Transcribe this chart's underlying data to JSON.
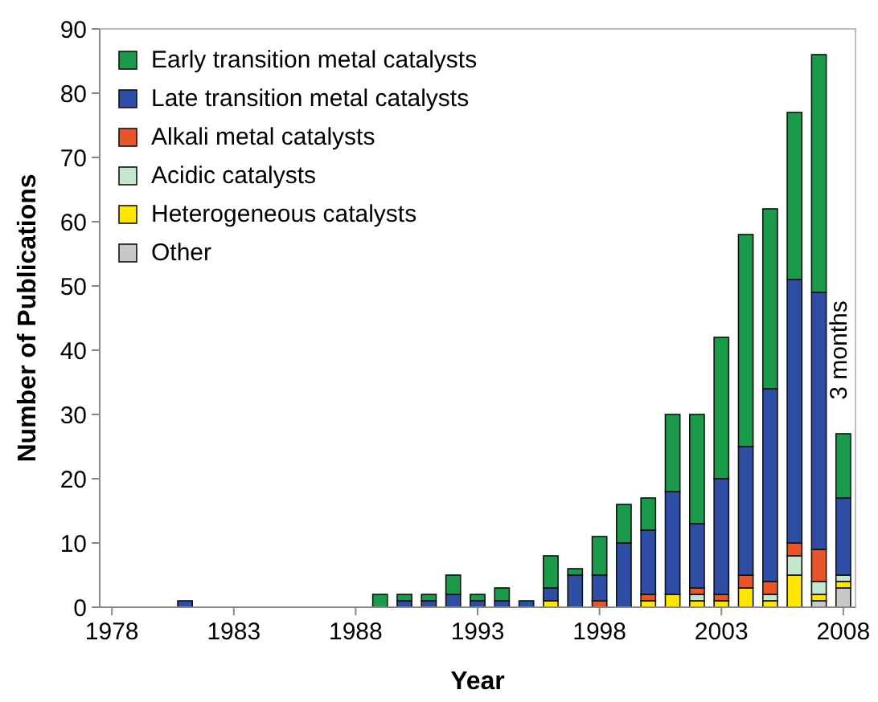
{
  "chart_data": {
    "type": "bar",
    "stacked": true,
    "xlabel": "Year",
    "ylabel": "Number of Publications",
    "categories": [
      "1978",
      null,
      null,
      null,
      null,
      "1983",
      null,
      null,
      null,
      null,
      "1988",
      null,
      null,
      null,
      null,
      "1993",
      null,
      null,
      null,
      null,
      "1998",
      null,
      null,
      null,
      null,
      "2003",
      null,
      null,
      null,
      null,
      "2008"
    ],
    "series": [
      {
        "name": "Other",
        "color": "#c8c8c8",
        "values": [
          0,
          0,
          0,
          0,
          0,
          0,
          0,
          0,
          0,
          0,
          0,
          0,
          0,
          0,
          0,
          0,
          0,
          0,
          0,
          0,
          0,
          0,
          0,
          0,
          0,
          0,
          0,
          0,
          0,
          1,
          3
        ]
      },
      {
        "name": "Heterogeneous catalysts",
        "color": "#ffe600",
        "values": [
          0,
          0,
          0,
          0,
          0,
          0,
          0,
          0,
          0,
          0,
          0,
          0,
          0,
          0,
          0,
          0,
          0,
          0,
          1,
          0,
          0,
          0,
          1,
          2,
          1,
          1,
          3,
          1,
          5,
          1,
          1
        ]
      },
      {
        "name": "Acidic catalysts",
        "color": "#c5e6cf",
        "values": [
          0,
          0,
          0,
          0,
          0,
          0,
          0,
          0,
          0,
          0,
          0,
          0,
          0,
          0,
          0,
          0,
          0,
          0,
          0,
          0,
          0,
          0,
          0,
          0,
          1,
          0,
          0,
          1,
          3,
          2,
          1
        ]
      },
      {
        "name": "Alkali metal catalysts",
        "color": "#e8552a",
        "values": [
          0,
          0,
          0,
          0,
          0,
          0,
          0,
          0,
          0,
          0,
          0,
          0,
          0,
          0,
          0,
          0,
          0,
          0,
          0,
          0,
          1,
          0,
          1,
          0,
          1,
          1,
          2,
          2,
          2,
          5,
          0
        ]
      },
      {
        "name": "Late transition metal catalysts",
        "color": "#2e4ea6",
        "values": [
          0,
          0,
          0,
          1,
          0,
          0,
          0,
          0,
          0,
          0,
          0,
          0,
          1,
          1,
          2,
          1,
          1,
          1,
          2,
          5,
          4,
          10,
          10,
          16,
          10,
          18,
          20,
          30,
          41,
          40,
          12
        ]
      },
      {
        "name": "Early transition metal catalysts",
        "color": "#1a9a4a",
        "values": [
          0,
          0,
          0,
          0,
          0,
          0,
          0,
          0,
          0,
          0,
          0,
          2,
          1,
          1,
          3,
          1,
          2,
          0,
          5,
          1,
          6,
          6,
          5,
          12,
          17,
          22,
          33,
          28,
          26,
          37,
          10
        ]
      }
    ],
    "ylim": [
      0,
      90
    ],
    "yticks": [
      0,
      10,
      20,
      30,
      40,
      50,
      60,
      70,
      80,
      90
    ],
    "legend": "top left",
    "annotations": [
      "3 months"
    ]
  }
}
